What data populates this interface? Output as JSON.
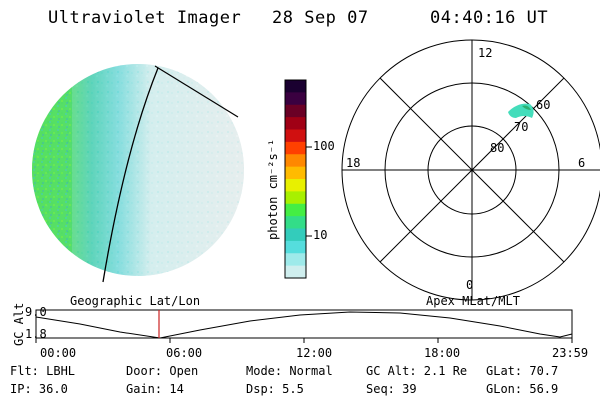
{
  "header": {
    "instrument": "Ultraviolet Imager",
    "date": "28 Sep 07",
    "time": "04:40:16 UT"
  },
  "colorbar": {
    "unit_label": "photon cm⁻²s⁻¹",
    "ticks": [
      "100",
      "10"
    ],
    "colors": [
      "#1a0030",
      "#3a0040",
      "#6a0025",
      "#a00015",
      "#d01010",
      "#ff4000",
      "#ff8800",
      "#ffbb00",
      "#e8f000",
      "#a8f000",
      "#44ee44",
      "#33dd88",
      "#33ccbb",
      "#55dddd",
      "#9eeaea",
      "#cfeeee"
    ]
  },
  "polar_plot": {
    "mlt_labels": [
      "12",
      "18",
      "6",
      "0"
    ],
    "mlat_labels": [
      "60",
      "70",
      "80"
    ]
  },
  "footer_labels": {
    "left": "Geographic Lat/Lon",
    "right": "Apex MLat/MLT"
  },
  "altitude_strip": {
    "ylabel": "GC Alt",
    "y_ticks": [
      "9.0",
      "1.8"
    ],
    "x_ticks": [
      "00:00",
      "06:00",
      "12:00",
      "18:00",
      "23:59"
    ]
  },
  "info": {
    "flt": "Flt: LBHL",
    "door": "Door: Open",
    "mode": "Mode: Normal",
    "gcalt": "GC Alt: 2.1 Re",
    "glat": "GLat: 70.7",
    "ip": "IP: 36.0",
    "gain": "Gain: 14",
    "dsp": "Dsp:    5.5",
    "seq": "Seq: 39",
    "glon": "GLon: 56.9"
  }
}
